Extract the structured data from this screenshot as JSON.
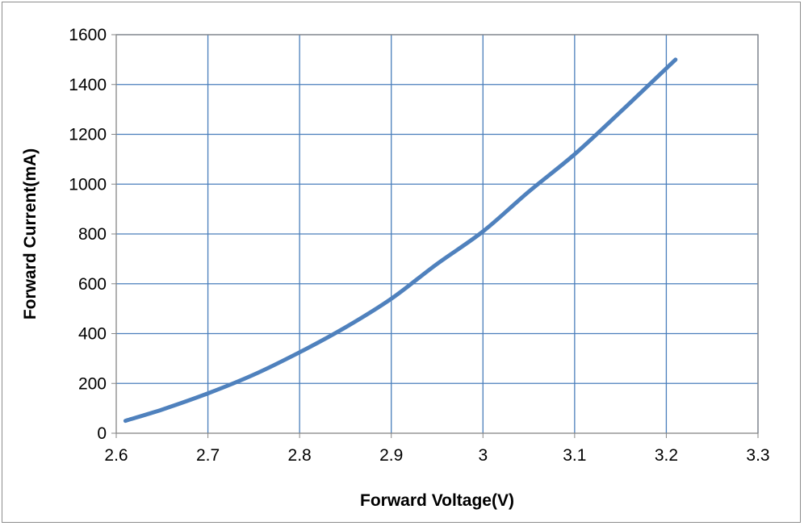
{
  "chart_data": {
    "type": "line",
    "title": "",
    "xlabel": "Forward Voltage(V)",
    "ylabel": "Forward Current(mA)",
    "xlim": [
      2.6,
      3.3
    ],
    "ylim": [
      0,
      1600
    ],
    "x_ticks": [
      "2.6",
      "2.7",
      "2.8",
      "2.9",
      "3",
      "3.1",
      "3.2",
      "3.3"
    ],
    "y_ticks": [
      "0",
      "200",
      "400",
      "600",
      "800",
      "1000",
      "1200",
      "1400",
      "1600"
    ],
    "grid": true,
    "legend": "none",
    "series": [
      {
        "color": "#4f81bd",
        "x": [
          2.61,
          2.65,
          2.7,
          2.75,
          2.8,
          2.85,
          2.9,
          2.95,
          3.0,
          3.05,
          3.1,
          3.15,
          3.21
        ],
        "y": [
          50,
          95,
          160,
          235,
          325,
          425,
          540,
          680,
          810,
          970,
          1120,
          1290,
          1500
        ]
      }
    ],
    "colors": {
      "gridline": "#4a7ebb",
      "axis": "#868686",
      "plot_border": "#868686"
    }
  }
}
